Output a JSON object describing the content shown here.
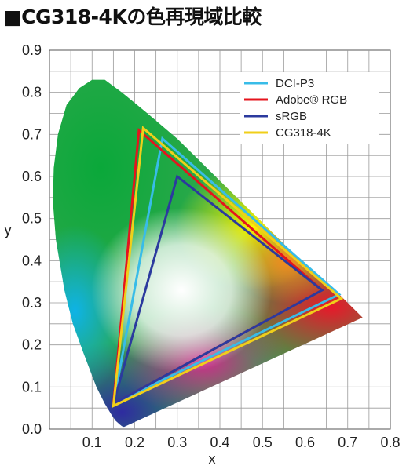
{
  "title": "■CG318-4Kの色再現域比較",
  "chart_data": {
    "type": "scatter",
    "title": "■CG318-4Kの色再現域比較",
    "xlabel": "x",
    "ylabel": "y",
    "xlim": [
      0,
      0.8
    ],
    "ylim": [
      0,
      0.9
    ],
    "x_ticks": [
      "0.1",
      "0.2",
      "0.3",
      "0.4",
      "0.5",
      "0.6",
      "0.7",
      "0.8"
    ],
    "y_ticks": [
      "0.0",
      "0.1",
      "0.2",
      "0.3",
      "0.4",
      "0.5",
      "0.6",
      "0.7",
      "0.8",
      "0.9"
    ],
    "grid": true,
    "legend_position": "top-right",
    "spectral_locus": [
      [
        0.175,
        0.005
      ],
      [
        0.17,
        0.007
      ],
      [
        0.165,
        0.011
      ],
      [
        0.155,
        0.02
      ],
      [
        0.145,
        0.035
      ],
      [
        0.13,
        0.06
      ],
      [
        0.11,
        0.1
      ],
      [
        0.08,
        0.18
      ],
      [
        0.055,
        0.25
      ],
      [
        0.035,
        0.33
      ],
      [
        0.015,
        0.45
      ],
      [
        0.008,
        0.54
      ],
      [
        0.01,
        0.62
      ],
      [
        0.02,
        0.7
      ],
      [
        0.04,
        0.77
      ],
      [
        0.07,
        0.81
      ],
      [
        0.1,
        0.83
      ],
      [
        0.13,
        0.83
      ],
      [
        0.17,
        0.8
      ],
      [
        0.23,
        0.75
      ],
      [
        0.3,
        0.69
      ],
      [
        0.4,
        0.59
      ],
      [
        0.5,
        0.49
      ],
      [
        0.6,
        0.39
      ],
      [
        0.68,
        0.32
      ],
      [
        0.735,
        0.265
      ]
    ],
    "series": [
      {
        "name": "DCI-P3",
        "color": "#38bce8",
        "points": [
          [
            0.68,
            0.32
          ],
          [
            0.265,
            0.69
          ],
          [
            0.15,
            0.06
          ]
        ]
      },
      {
        "name": "Adobe® RGB",
        "color": "#e5141d",
        "points": [
          [
            0.64,
            0.33
          ],
          [
            0.21,
            0.71
          ],
          [
            0.15,
            0.06
          ]
        ]
      },
      {
        "name": "sRGB",
        "color": "#2b3a9e",
        "points": [
          [
            0.64,
            0.33
          ],
          [
            0.3,
            0.6
          ],
          [
            0.15,
            0.06
          ]
        ]
      },
      {
        "name": "CG318-4K",
        "color": "#f0cf1a",
        "points": [
          [
            0.685,
            0.31
          ],
          [
            0.22,
            0.715
          ],
          [
            0.15,
            0.055
          ]
        ]
      }
    ]
  }
}
